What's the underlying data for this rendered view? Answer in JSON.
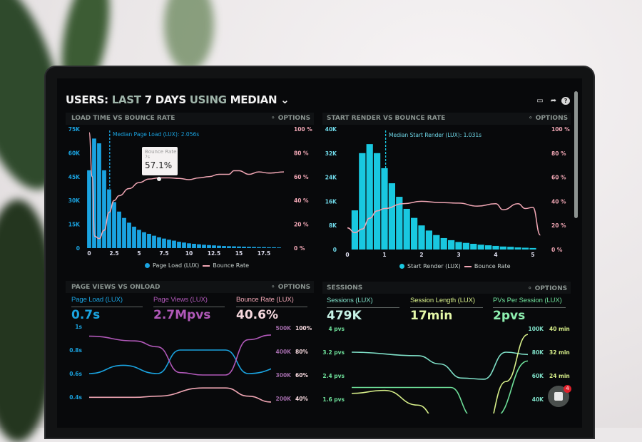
{
  "header": {
    "prefix": "USERS:",
    "p1": "LAST",
    "p2": "7 DAYS",
    "p3": "USING",
    "p4": "MEDIAN",
    "icons": [
      "monitor-icon",
      "share-icon",
      "help-icon"
    ]
  },
  "colors": {
    "blue": "#1aa3e0",
    "cyan": "#19c8e0",
    "pink": "#f0a6b4",
    "purple": "#b058b8",
    "teal": "#7fe0c8",
    "yellowgreen": "#d8f08a",
    "green": "#6ee09a"
  },
  "options_label": "OPTIONS",
  "panels": {
    "load": {
      "title": "LOAD TIME VS BOUNCE RATE",
      "median": "Median Page Load (LUX): 2.056s",
      "tooltip": {
        "label": "Bounce Rate",
        "sub": "7s",
        "value": "57.1%"
      },
      "legend": [
        "Page Load (LUX)",
        "Bounce Rate"
      ]
    },
    "render": {
      "title": "START RENDER VS BOUNCE RATE",
      "median": "Median Start Render (LUX): 1.031s",
      "legend": [
        "Start Render (LUX)",
        "Bounce Rate"
      ]
    },
    "pv": {
      "title": "PAGE VIEWS VS ONLOAD",
      "kpis": [
        {
          "label": "Page Load (LUX)",
          "value": "0.7s"
        },
        {
          "label": "Page Views (LUX)",
          "value": "2.7Mpvs"
        },
        {
          "label": "Bounce Rate (LUX)",
          "value": "40.6%"
        }
      ]
    },
    "sessions": {
      "title": "SESSIONS",
      "kpis": [
        {
          "label": "Sessions (LUX)",
          "value": "479K"
        },
        {
          "label": "Session Length (LUX)",
          "value": "17min"
        },
        {
          "label": "PVs Per Session (LUX)",
          "value": "2pvs"
        }
      ]
    }
  },
  "chat": {
    "badge": "4"
  },
  "chart_data": [
    {
      "type": "bar",
      "title": "LOAD TIME VS BOUNCE RATE",
      "xlim": [
        0,
        19.5
      ],
      "xticks": [
        "0",
        "2.5",
        "5",
        "7.5",
        "10",
        "12.5",
        "15",
        "17.5"
      ],
      "xtick_values": [
        0,
        2.5,
        5,
        7.5,
        10,
        12.5,
        15,
        17.5
      ],
      "yticks_left": [
        "0",
        "15K",
        "30K",
        "45K",
        "60K",
        "75K"
      ],
      "ylim_left": [
        0,
        75000
      ],
      "yticks_right": [
        "0 %",
        "20 %",
        "40 %",
        "60 %",
        "80 %",
        "100 %"
      ],
      "ylim_right": [
        0,
        100
      ],
      "series": [
        {
          "name": "Page Load (LUX)",
          "type": "bar",
          "bin": 0.5,
          "values": [
            49000,
            69000,
            66000,
            49000,
            37000,
            29000,
            23000,
            19000,
            16000,
            13500,
            11500,
            10000,
            9000,
            7800,
            6800,
            6000,
            5300,
            4700,
            4000,
            3500,
            3000,
            2700,
            2400,
            2100,
            1900,
            1700,
            1500,
            1300,
            1200,
            1100,
            1000,
            900,
            800,
            700,
            600,
            600,
            500,
            500,
            400
          ]
        },
        {
          "name": "Bounce Rate",
          "type": "line",
          "points": [
            [
              0,
              97
            ],
            [
              0.3,
              60
            ],
            [
              0.55,
              10
            ],
            [
              1,
              8
            ],
            [
              1.5,
              15
            ],
            [
              2,
              30
            ],
            [
              2.5,
              40
            ],
            [
              3,
              44
            ],
            [
              4,
              50
            ],
            [
              5,
              55
            ],
            [
              6,
              58
            ],
            [
              7,
              59
            ],
            [
              8,
              59
            ],
            [
              9,
              58.5
            ],
            [
              10,
              57.5
            ],
            [
              11,
              59
            ],
            [
              12,
              60
            ],
            [
              13,
              62
            ],
            [
              14,
              62
            ],
            [
              14.5,
              65
            ],
            [
              15,
              65
            ],
            [
              16,
              62
            ],
            [
              17,
              64
            ],
            [
              18,
              63
            ],
            [
              19.5,
              64
            ]
          ]
        }
      ],
      "median_x": 2.056
    },
    {
      "type": "bar",
      "title": "START RENDER VS BOUNCE RATE",
      "xlim": [
        0,
        5.2
      ],
      "xticks": [
        "0",
        "1",
        "2",
        "3",
        "4",
        "5"
      ],
      "xtick_values": [
        0,
        1,
        2,
        3,
        4,
        5
      ],
      "yticks_left": [
        "0",
        "8K",
        "16K",
        "24K",
        "32K",
        "40K"
      ],
      "ylim_left": [
        0,
        40000
      ],
      "yticks_right": [
        "0 %",
        "20 %",
        "40 %",
        "60 %",
        "80 %",
        "100 %"
      ],
      "ylim_right": [
        0,
        100
      ],
      "series": [
        {
          "name": "Start Render (LUX)",
          "type": "bar",
          "bin": 0.2,
          "values": [
            13000,
            32000,
            35000,
            32000,
            27000,
            22000,
            17500,
            13500,
            10500,
            8000,
            6300,
            4800,
            3800,
            3100,
            2500,
            2200,
            1900,
            1600,
            1400,
            1200,
            1000,
            900,
            700,
            600,
            500
          ]
        },
        {
          "name": "Bounce Rate",
          "type": "line",
          "points": [
            [
              0,
              18
            ],
            [
              0.2,
              14
            ],
            [
              0.4,
              17
            ],
            [
              0.6,
              26
            ],
            [
              0.8,
              32
            ],
            [
              1,
              34
            ],
            [
              1.5,
              38
            ],
            [
              2,
              40
            ],
            [
              2.5,
              39
            ],
            [
              3,
              38.5
            ],
            [
              3.5,
              36
            ],
            [
              4,
              38
            ],
            [
              4.2,
              33
            ],
            [
              4.6,
              38
            ],
            [
              4.8,
              34
            ],
            [
              5,
              35
            ],
            [
              5.2,
              12
            ]
          ]
        }
      ],
      "median_x": 1.031
    },
    {
      "type": "line",
      "title": "PAGE VIEWS VS ONLOAD",
      "xlim": [
        0,
        8
      ],
      "yticks_left": [
        "0.4s",
        "0.6s",
        "0.8s",
        "1s"
      ],
      "ylim_left": [
        0.4,
        1
      ],
      "yticks_right_pv": [
        "200K",
        "300K",
        "400K",
        "500K"
      ],
      "ylim_pv": [
        200000,
        500000
      ],
      "yticks_right_br": [
        "40%",
        "60%",
        "80%",
        "100%"
      ],
      "ylim_br": [
        40,
        100
      ],
      "series": [
        {
          "name": "Page Load (LUX)",
          "axis": "left",
          "points": [
            [
              0,
              0.6
            ],
            [
              1.5,
              0.67
            ],
            [
              3,
              0.6
            ],
            [
              4,
              0.8
            ],
            [
              6,
              0.8
            ],
            [
              7,
              0.6
            ],
            [
              9,
              0.68
            ]
          ]
        },
        {
          "name": "Page Views (LUX)",
          "axis": "pv",
          "points": [
            [
              0,
              465000
            ],
            [
              2,
              445000
            ],
            [
              3,
              420000
            ],
            [
              4,
              310000
            ],
            [
              5,
              300000
            ],
            [
              6,
              300000
            ],
            [
              7,
              450000
            ],
            [
              8,
              470000
            ]
          ]
        },
        {
          "name": "Bounce Rate (LUX)",
          "axis": "br",
          "points": [
            [
              0,
              41
            ],
            [
              2,
              41
            ],
            [
              3,
              42
            ],
            [
              5,
              49
            ],
            [
              6,
              49
            ],
            [
              7,
              42
            ],
            [
              8,
              37
            ]
          ]
        }
      ]
    },
    {
      "type": "line",
      "title": "SESSIONS",
      "xlim": [
        0,
        8
      ],
      "yticks_left": [
        "1.6 pvs",
        "2.4 pvs",
        "3.2 pvs",
        "4 pvs"
      ],
      "ylim_left": [
        1.6,
        4
      ],
      "yticks_right_s": [
        "40K",
        "60K",
        "80K",
        "100K"
      ],
      "ylim_s": [
        40000,
        100000
      ],
      "yticks_right_m": [
        "24 min",
        "32 min",
        "40 min"
      ],
      "ylim_m": [
        16,
        40
      ],
      "series": [
        {
          "name": "Sessions (LUX)",
          "axis": "s",
          "points": [
            [
              0,
              80000
            ],
            [
              3,
              77000
            ],
            [
              4,
              70000
            ],
            [
              5,
              58000
            ],
            [
              6,
              57000
            ],
            [
              7,
              80000
            ],
            [
              8,
              78000
            ]
          ]
        },
        {
          "name": "PVs Per Session (LUX)",
          "axis": "left",
          "points": [
            [
              0,
              2.0
            ],
            [
              4.5,
              2.0
            ],
            [
              5.5,
              1.0
            ],
            [
              6.5,
              1.0
            ],
            [
              8,
              2.9
            ]
          ]
        },
        {
          "name": "Session Length (LUX)",
          "axis": "m",
          "points": [
            [
              0,
              18
            ],
            [
              1.5,
              19
            ],
            [
              3,
              14
            ],
            [
              4,
              8
            ],
            [
              6,
              4
            ],
            [
              7,
              22
            ],
            [
              8,
              38
            ]
          ]
        }
      ]
    }
  ]
}
